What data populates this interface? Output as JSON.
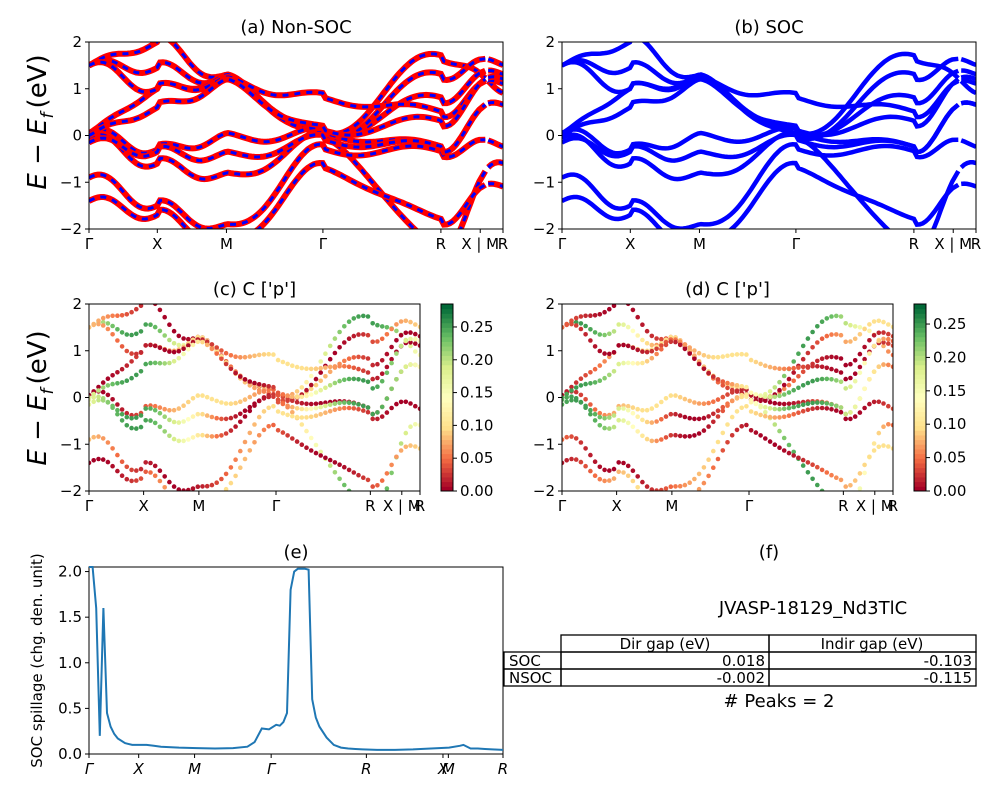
{
  "labels": {
    "ylabel_energy_main": "E − E",
    "ylabel_energy_sub": "f",
    "ylabel_energy_unit": "(eV)"
  },
  "colors": {
    "nonsoc_red": "#ff0000",
    "band_blue": "#0000ff",
    "spillage_line": "#1f77b4"
  },
  "chart_data": [
    {
      "type": "line",
      "title": "(a) Non-SOC",
      "xticks": [
        "Γ",
        "X",
        "M",
        "Γ",
        "R",
        "X | M",
        "R"
      ],
      "ylim": [
        -2,
        2
      ],
      "yticks": [
        "−2",
        "−1",
        "0",
        "1",
        "2"
      ],
      "series": [
        {
          "color": "#ff0000"
        },
        {
          "color": "#0000ff"
        }
      ]
    },
    {
      "type": "line",
      "title": "(b) SOC",
      "xticks": [
        "Γ",
        "X",
        "M",
        "Γ",
        "R",
        "X | M",
        "R"
      ],
      "ylim": [
        -2,
        2
      ],
      "yticks": [
        "−2",
        "−1",
        "0",
        "1",
        "2"
      ],
      "series": [
        {
          "color": "#0000ff"
        }
      ]
    },
    {
      "type": "scatter",
      "title": "(c)  C ['p']",
      "xticks": [
        "Γ",
        "X",
        "M",
        "Γ",
        "R",
        "X | M",
        "R"
      ],
      "ylim": [
        -2,
        2
      ],
      "yticks": [
        "−2",
        "−1",
        "0",
        "1",
        "2"
      ],
      "colorbar": {
        "ticks": [
          "0.00",
          "0.05",
          "0.10",
          "0.15",
          "0.20",
          "0.25"
        ],
        "range": [
          0,
          0.285
        ]
      }
    },
    {
      "type": "scatter",
      "title": "(d) C ['p']",
      "xticks": [
        "Γ",
        "X",
        "M",
        "Γ",
        "R",
        "X | M",
        "R"
      ],
      "ylim": [
        -2,
        2
      ],
      "yticks": [
        "−2",
        "−1",
        "0",
        "1",
        "2"
      ],
      "colorbar": {
        "ticks": [
          "0.00",
          "0.05",
          "0.10",
          "0.15",
          "0.20",
          "0.25"
        ],
        "range": [
          0,
          0.28
        ]
      }
    },
    {
      "type": "line",
      "title": "(e)",
      "ylabel": "SOC spillage (chg. den. unit)",
      "xticks": [
        "Γ",
        "X",
        "M",
        "Γ",
        "R",
        "X",
        "M",
        "R"
      ],
      "ylim": [
        0,
        2.05
      ],
      "yticks": [
        "0.0",
        "0.5",
        "1.0",
        "1.5",
        "2.0"
      ],
      "x": [
        0,
        1,
        2,
        3,
        4,
        5,
        6,
        7,
        8,
        10,
        12,
        14,
        16,
        18,
        20,
        25,
        30,
        35,
        40,
        44,
        46,
        48,
        50,
        52,
        53,
        54,
        55,
        56,
        57,
        58,
        60,
        61,
        62,
        63,
        64,
        66,
        68,
        70,
        72,
        74,
        76,
        80,
        85,
        90,
        95,
        100,
        103,
        104,
        106,
        108,
        110,
        112,
        115
      ],
      "series": [
        {
          "values": [
            2.05,
            2.05,
            1.6,
            0.2,
            1.6,
            0.45,
            0.3,
            0.22,
            0.17,
            0.12,
            0.1,
            0.1,
            0.1,
            0.09,
            0.08,
            0.07,
            0.065,
            0.06,
            0.065,
            0.08,
            0.13,
            0.28,
            0.27,
            0.32,
            0.31,
            0.35,
            0.45,
            1.8,
            2.0,
            2.03,
            2.03,
            2.02,
            0.6,
            0.4,
            0.3,
            0.18,
            0.1,
            0.07,
            0.06,
            0.055,
            0.05,
            0.045,
            0.045,
            0.05,
            0.06,
            0.07,
            0.09,
            0.1,
            0.06,
            0.06,
            0.055,
            0.05,
            0.045
          ]
        }
      ]
    }
  ],
  "panel_f": {
    "title": "(f)",
    "material": "JVASP-18129_Nd3TlC",
    "headers": [
      "Dir gap (eV)",
      "Indir gap (eV)"
    ],
    "rows": [
      {
        "label": "SOC",
        "dir": "0.018",
        "indir": "-0.103"
      },
      {
        "label": "NSOC",
        "dir": "-0.002",
        "indir": "-0.115"
      }
    ],
    "peaks": "# Peaks = 2"
  }
}
